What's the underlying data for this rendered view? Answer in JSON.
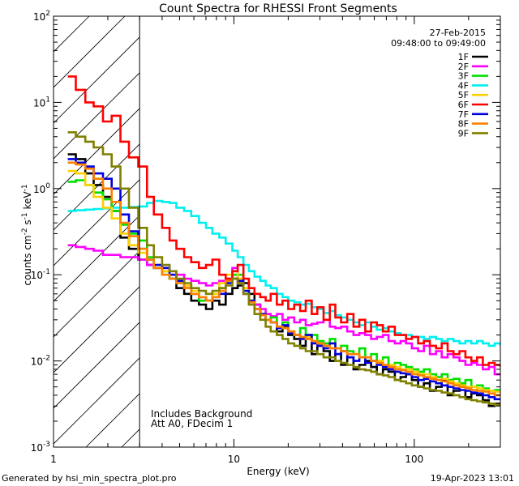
{
  "chart_data": {
    "type": "line",
    "title": "Count Spectra for RHESSI Front Segments",
    "xlabel": "Energy (keV)",
    "ylabel_parts": [
      "counts cm",
      "-2",
      " s",
      "-1",
      " keV",
      "-1"
    ],
    "xscale": "log",
    "yscale": "log",
    "xlim": [
      1,
      300
    ],
    "ylim": [
      0.001,
      100
    ],
    "x_tick_labels": [
      {
        "value": 1,
        "label": "1"
      },
      {
        "value": 10,
        "label": "10"
      },
      {
        "value": 100,
        "label": "100"
      }
    ],
    "y_tick_labels": [
      {
        "value": 0.001,
        "base": "10",
        "exp": "-3"
      },
      {
        "value": 0.01,
        "base": "10",
        "exp": "-2"
      },
      {
        "value": 0.1,
        "base": "10",
        "exp": "-1"
      },
      {
        "value": 1,
        "base": "10",
        "exp": "0"
      },
      {
        "value": 10,
        "base": "10",
        "exp": "1"
      },
      {
        "value": 100,
        "base": "10",
        "exp": "2"
      }
    ],
    "date": "27-Feb-2015",
    "time_range": "09:48:00 to 09:49:00",
    "hatched_region_energy_max": 3,
    "annotations": [
      "Includes Background",
      "Att A0, FDecim 1"
    ],
    "footer_left": "Generated by hsi_min_spectra_plot.pro",
    "footer_right": "19-Apr-2023 13:01",
    "energy_bins": [
      1.2,
      1.33,
      1.5,
      1.67,
      1.88,
      2.1,
      2.35,
      2.62,
      2.95,
      3.3,
      3.6,
      4,
      4.4,
      4.8,
      5.3,
      5.8,
      6.4,
      7,
      7.6,
      8.3,
      9,
      9.8,
      10.5,
      11.3,
      12.1,
      13,
      14,
      15,
      16,
      17.3,
      18.6,
      20,
      21.6,
      23.3,
      25,
      27,
      29,
      31.4,
      34,
      36.5,
      39.3,
      42.5,
      46,
      49.6,
      53.5,
      57.6,
      62,
      67,
      72,
      78,
      84,
      90,
      97,
      105,
      113,
      122,
      132,
      142,
      153,
      165,
      178,
      192,
      207,
      223,
      240,
      259,
      279,
      300
    ],
    "series": [
      {
        "name": "1F",
        "color": "#000000",
        "values": [
          2.5,
          2.2,
          1.5,
          1.1,
          0.8,
          0.55,
          0.27,
          0.2,
          0.15,
          0.13,
          0.12,
          0.11,
          0.09,
          0.07,
          0.06,
          0.05,
          0.045,
          0.04,
          0.05,
          0.045,
          0.06,
          0.07,
          0.075,
          0.08,
          0.06,
          0.045,
          0.035,
          0.03,
          0.028,
          0.022,
          0.025,
          0.02,
          0.018,
          0.015,
          0.02,
          0.012,
          0.015,
          0.013,
          0.01,
          0.012,
          0.009,
          0.011,
          0.008,
          0.009,
          0.01,
          0.0085,
          0.007,
          0.008,
          0.0075,
          0.006,
          0.0065,
          0.007,
          0.006,
          0.005,
          0.0055,
          0.0045,
          0.005,
          0.006,
          0.004,
          0.0045,
          0.005,
          0.0038,
          0.0042,
          0.004,
          0.0035,
          0.003,
          0.0032,
          0.003
        ]
      },
      {
        "name": "2F",
        "color": "#ff00ff",
        "values": [
          0.22,
          0.21,
          0.2,
          0.19,
          0.17,
          0.17,
          0.16,
          0.16,
          0.15,
          0.13,
          0.12,
          0.12,
          0.11,
          0.1,
          0.09,
          0.085,
          0.08,
          0.075,
          0.08,
          0.085,
          0.09,
          0.12,
          0.08,
          0.06,
          0.05,
          0.045,
          0.04,
          0.035,
          0.033,
          0.035,
          0.03,
          0.032,
          0.028,
          0.03,
          0.026,
          0.027,
          0.028,
          0.03,
          0.025,
          0.024,
          0.025,
          0.022,
          0.02,
          0.021,
          0.02,
          0.018,
          0.019,
          0.02,
          0.017,
          0.016,
          0.017,
          0.016,
          0.014,
          0.013,
          0.015,
          0.012,
          0.013,
          0.011,
          0.012,
          0.011,
          0.01,
          0.009,
          0.0095,
          0.009,
          0.008,
          0.0085,
          0.007,
          0.007
        ]
      },
      {
        "name": "3F",
        "color": "#00e000",
        "values": [
          1.2,
          1.25,
          1.1,
          0.9,
          0.75,
          0.55,
          0.38,
          0.3,
          0.25,
          0.16,
          0.12,
          0.1,
          0.09,
          0.08,
          0.07,
          0.06,
          0.05,
          0.05,
          0.06,
          0.07,
          0.09,
          0.1,
          0.1,
          0.07,
          0.05,
          0.04,
          0.035,
          0.03,
          0.032,
          0.025,
          0.028,
          0.022,
          0.02,
          0.024,
          0.018,
          0.02,
          0.017,
          0.016,
          0.018,
          0.014,
          0.015,
          0.013,
          0.012,
          0.014,
          0.011,
          0.012,
          0.01,
          0.011,
          0.009,
          0.0095,
          0.009,
          0.0085,
          0.008,
          0.0075,
          0.008,
          0.007,
          0.0065,
          0.007,
          0.006,
          0.0062,
          0.0055,
          0.006,
          0.005,
          0.0052,
          0.0048,
          0.0045,
          0.0046,
          0.0044
        ]
      },
      {
        "name": "4F",
        "color": "#00f0f0",
        "values": [
          0.55,
          0.56,
          0.57,
          0.58,
          0.59,
          0.6,
          0.6,
          0.61,
          0.62,
          0.68,
          0.72,
          0.7,
          0.68,
          0.6,
          0.55,
          0.48,
          0.4,
          0.35,
          0.3,
          0.27,
          0.23,
          0.19,
          0.16,
          0.13,
          0.11,
          0.095,
          0.085,
          0.075,
          0.07,
          0.06,
          0.055,
          0.05,
          0.048,
          0.045,
          0.046,
          0.042,
          0.04,
          0.036,
          0.038,
          0.034,
          0.032,
          0.03,
          0.028,
          0.026,
          0.028,
          0.025,
          0.023,
          0.024,
          0.022,
          0.021,
          0.02,
          0.02,
          0.019,
          0.019,
          0.018,
          0.019,
          0.018,
          0.017,
          0.018,
          0.017,
          0.016,
          0.017,
          0.016,
          0.017,
          0.016,
          0.015,
          0.016,
          0.015
        ]
      },
      {
        "name": "5F",
        "color": "#ffd000",
        "values": [
          1.6,
          1.5,
          1.1,
          0.8,
          0.6,
          0.45,
          0.3,
          0.22,
          0.18,
          0.15,
          0.13,
          0.11,
          0.1,
          0.085,
          0.075,
          0.065,
          0.055,
          0.05,
          0.06,
          0.08,
          0.1,
          0.11,
          0.09,
          0.07,
          0.05,
          0.04,
          0.035,
          0.03,
          0.028,
          0.025,
          0.024,
          0.022,
          0.02,
          0.018,
          0.019,
          0.017,
          0.016,
          0.015,
          0.016,
          0.014,
          0.013,
          0.012,
          0.012,
          0.011,
          0.011,
          0.01,
          0.01,
          0.009,
          0.009,
          0.0085,
          0.008,
          0.008,
          0.0075,
          0.007,
          0.007,
          0.0065,
          0.006,
          0.0062,
          0.0058,
          0.0055,
          0.0052,
          0.005,
          0.005,
          0.0048,
          0.0046,
          0.0045,
          0.0044,
          0.0042
        ]
      },
      {
        "name": "6F",
        "color": "#ff0000",
        "values": [
          20,
          14,
          10,
          9,
          6,
          7,
          3.5,
          2.3,
          1.8,
          0.8,
          0.5,
          0.35,
          0.25,
          0.2,
          0.16,
          0.14,
          0.12,
          0.13,
          0.15,
          0.1,
          0.09,
          0.11,
          0.13,
          0.09,
          0.07,
          0.06,
          0.055,
          0.05,
          0.06,
          0.045,
          0.05,
          0.04,
          0.045,
          0.038,
          0.05,
          0.035,
          0.042,
          0.03,
          0.045,
          0.032,
          0.028,
          0.035,
          0.025,
          0.03,
          0.022,
          0.028,
          0.026,
          0.022,
          0.025,
          0.02,
          0.02,
          0.018,
          0.019,
          0.016,
          0.017,
          0.015,
          0.014,
          0.016,
          0.013,
          0.012,
          0.013,
          0.011,
          0.01,
          0.011,
          0.009,
          0.0095,
          0.009,
          0.0085
        ]
      },
      {
        "name": "7F",
        "color": "#0000e0",
        "values": [
          2.2,
          2,
          1.8,
          1.5,
          1.3,
          1,
          0.5,
          0.32,
          0.2,
          0.15,
          0.13,
          0.12,
          0.1,
          0.085,
          0.07,
          0.06,
          0.055,
          0.05,
          0.055,
          0.06,
          0.08,
          0.09,
          0.085,
          0.065,
          0.05,
          0.04,
          0.035,
          0.03,
          0.028,
          0.024,
          0.026,
          0.021,
          0.02,
          0.018,
          0.02,
          0.016,
          0.015,
          0.014,
          0.016,
          0.012,
          0.013,
          0.011,
          0.01,
          0.011,
          0.0095,
          0.01,
          0.009,
          0.0085,
          0.008,
          0.0075,
          0.0072,
          0.007,
          0.0065,
          0.006,
          0.0062,
          0.0058,
          0.0055,
          0.0052,
          0.005,
          0.0048,
          0.0046,
          0.0045,
          0.0043,
          0.0042,
          0.004,
          0.0038,
          0.0036,
          0.0035
        ]
      },
      {
        "name": "8F",
        "color": "#ff8000",
        "values": [
          2,
          1.9,
          1.7,
          1.3,
          1,
          0.7,
          0.4,
          0.28,
          0.2,
          0.15,
          0.12,
          0.1,
          0.09,
          0.08,
          0.07,
          0.06,
          0.055,
          0.05,
          0.055,
          0.065,
          0.085,
          0.09,
          0.08,
          0.06,
          0.048,
          0.04,
          0.034,
          0.03,
          0.028,
          0.025,
          0.024,
          0.022,
          0.02,
          0.019,
          0.018,
          0.017,
          0.016,
          0.015,
          0.014,
          0.014,
          0.013,
          0.012,
          0.012,
          0.011,
          0.011,
          0.01,
          0.0095,
          0.009,
          0.0085,
          0.008,
          0.0078,
          0.0075,
          0.007,
          0.0068,
          0.0065,
          0.0062,
          0.006,
          0.0058,
          0.0055,
          0.0052,
          0.005,
          0.0048,
          0.0046,
          0.0045,
          0.0044,
          0.0042,
          0.004,
          0.004
        ]
      },
      {
        "name": "9F",
        "color": "#808000",
        "values": [
          4.5,
          4,
          3.5,
          3,
          2.5,
          1.8,
          1,
          0.6,
          0.35,
          0.22,
          0.16,
          0.13,
          0.11,
          0.09,
          0.08,
          0.07,
          0.065,
          0.06,
          0.065,
          0.07,
          0.075,
          0.09,
          0.08,
          0.06,
          0.045,
          0.035,
          0.03,
          0.025,
          0.022,
          0.02,
          0.018,
          0.016,
          0.015,
          0.014,
          0.013,
          0.013,
          0.012,
          0.011,
          0.011,
          0.01,
          0.0095,
          0.009,
          0.0085,
          0.008,
          0.0078,
          0.0075,
          0.007,
          0.0068,
          0.0065,
          0.006,
          0.0058,
          0.0055,
          0.0052,
          0.005,
          0.0048,
          0.0046,
          0.0045,
          0.0043,
          0.0042,
          0.004,
          0.0038,
          0.0036,
          0.0035,
          0.0034,
          0.0033,
          0.0032,
          0.0031,
          0.003
        ]
      }
    ]
  }
}
